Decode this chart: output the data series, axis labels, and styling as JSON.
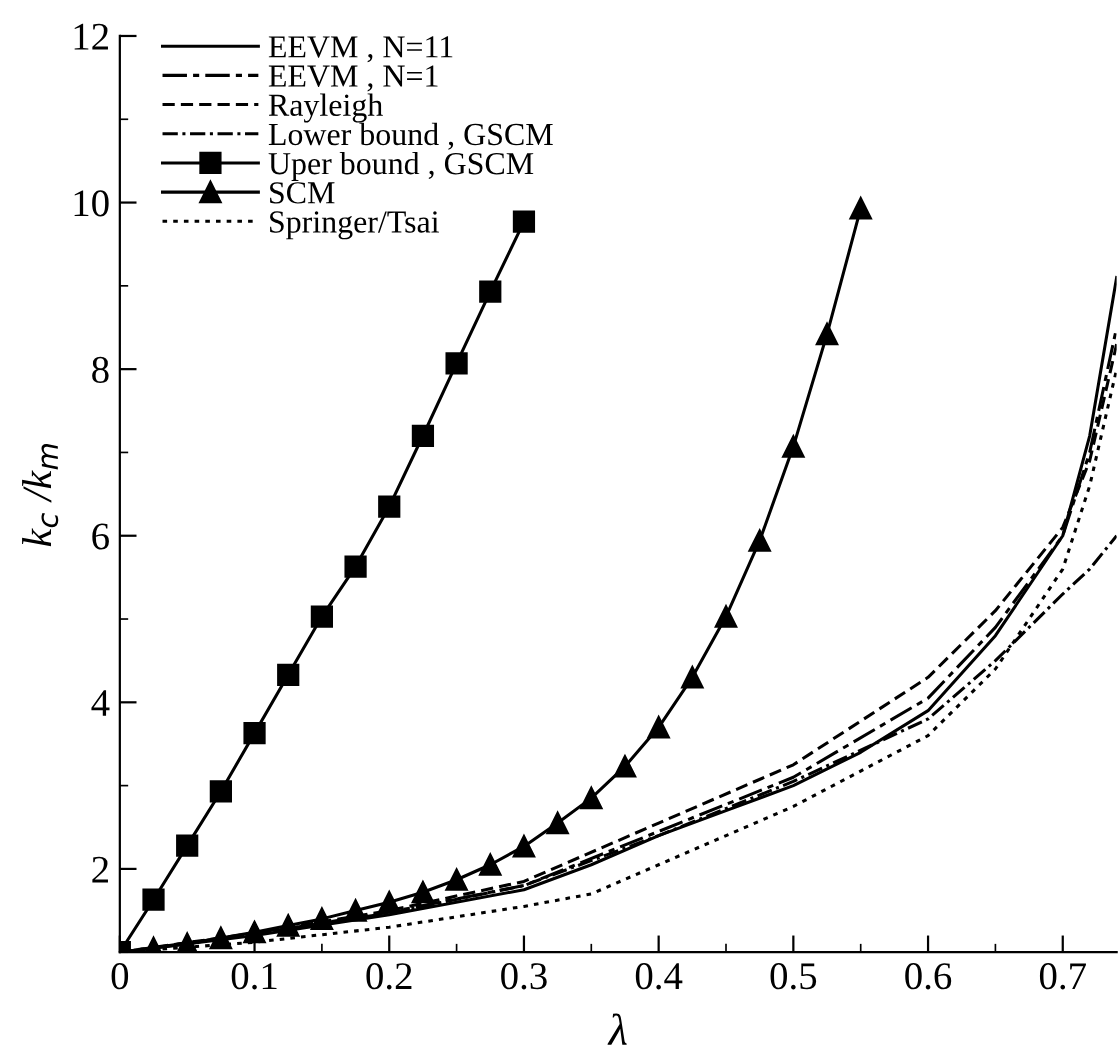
{
  "chart_data": {
    "type": "line",
    "xlabel": "λ",
    "ylabel": "k$_{c}$ /k$_{m}$",
    "xlim": [
      0,
      0.74
    ],
    "ylim": [
      1,
      12
    ],
    "xticks": [
      0,
      0.1,
      0.2,
      0.3,
      0.4,
      0.5,
      0.6,
      0.7
    ],
    "yticks": [
      2,
      4,
      6,
      8,
      10,
      12
    ],
    "grid": false,
    "legend": "top left",
    "series": [
      {
        "name": "EEVM , N=11",
        "color": "#000000",
        "line_style": "solid",
        "marker": "none",
        "x": [
          0,
          0.1,
          0.2,
          0.3,
          0.35,
          0.4,
          0.45,
          0.5,
          0.55,
          0.6,
          0.65,
          0.7,
          0.72,
          0.74
        ],
        "values": [
          1,
          1.2,
          1.45,
          1.75,
          2.05,
          2.4,
          2.7,
          3.0,
          3.4,
          3.9,
          4.8,
          6.0,
          7.2,
          9.1
        ]
      },
      {
        "name": "EEVM , N=1",
        "color": "#000000",
        "line_style": "longdashdot",
        "marker": "none",
        "x": [
          0,
          0.1,
          0.2,
          0.3,
          0.4,
          0.5,
          0.6,
          0.65,
          0.7,
          0.72,
          0.74
        ],
        "values": [
          1,
          1.22,
          1.48,
          1.8,
          2.45,
          3.1,
          4.05,
          4.9,
          6.0,
          7.0,
          8.5
        ]
      },
      {
        "name": "Rayleigh",
        "color": "#000000",
        "line_style": "dashed",
        "marker": "none",
        "x": [
          0,
          0.1,
          0.2,
          0.3,
          0.4,
          0.5,
          0.6,
          0.65,
          0.7,
          0.72,
          0.74
        ],
        "values": [
          1,
          1.23,
          1.5,
          1.85,
          2.55,
          3.25,
          4.3,
          5.1,
          6.1,
          6.9,
          8.3
        ]
      },
      {
        "name": "Lower bound , GSCM",
        "color": "#000000",
        "line_style": "dashdot",
        "marker": "none",
        "x": [
          0,
          0.1,
          0.2,
          0.3,
          0.4,
          0.5,
          0.6,
          0.65,
          0.7,
          0.72,
          0.74
        ],
        "values": [
          1,
          1.22,
          1.47,
          1.8,
          2.4,
          3.05,
          3.8,
          4.5,
          5.3,
          5.6,
          6.0
        ]
      },
      {
        "name": "Uper bound , GSCM",
        "color": "#000000",
        "line_style": "solid",
        "marker": "square",
        "x": [
          0,
          0.025,
          0.05,
          0.075,
          0.1,
          0.125,
          0.15,
          0.175,
          0.2,
          0.225,
          0.25,
          0.275,
          0.3
        ],
        "values": [
          1,
          1.63,
          2.28,
          2.93,
          3.63,
          4.33,
          5.03,
          5.63,
          6.35,
          7.2,
          8.07,
          8.93,
          9.77
        ]
      },
      {
        "name": "SCM",
        "color": "#000000",
        "line_style": "solid",
        "marker": "triangle",
        "x": [
          0,
          0.025,
          0.05,
          0.075,
          0.1,
          0.125,
          0.15,
          0.175,
          0.2,
          0.225,
          0.25,
          0.275,
          0.3,
          0.325,
          0.35,
          0.375,
          0.4,
          0.425,
          0.45,
          0.475,
          0.5,
          0.525,
          0.55
        ],
        "values": [
          1,
          1.05,
          1.1,
          1.17,
          1.24,
          1.32,
          1.4,
          1.5,
          1.6,
          1.72,
          1.87,
          2.05,
          2.27,
          2.55,
          2.85,
          3.23,
          3.7,
          4.3,
          5.03,
          5.94,
          7.07,
          8.42,
          9.93
        ]
      },
      {
        "name": "Springer/Tsai",
        "color": "#000000",
        "line_style": "dotted",
        "marker": "none",
        "x": [
          0,
          0.1,
          0.2,
          0.3,
          0.35,
          0.4,
          0.5,
          0.6,
          0.65,
          0.7,
          0.72,
          0.74
        ],
        "values": [
          1,
          1.12,
          1.3,
          1.55,
          1.7,
          2.05,
          2.75,
          3.6,
          4.4,
          5.6,
          6.6,
          8.0
        ]
      }
    ]
  }
}
